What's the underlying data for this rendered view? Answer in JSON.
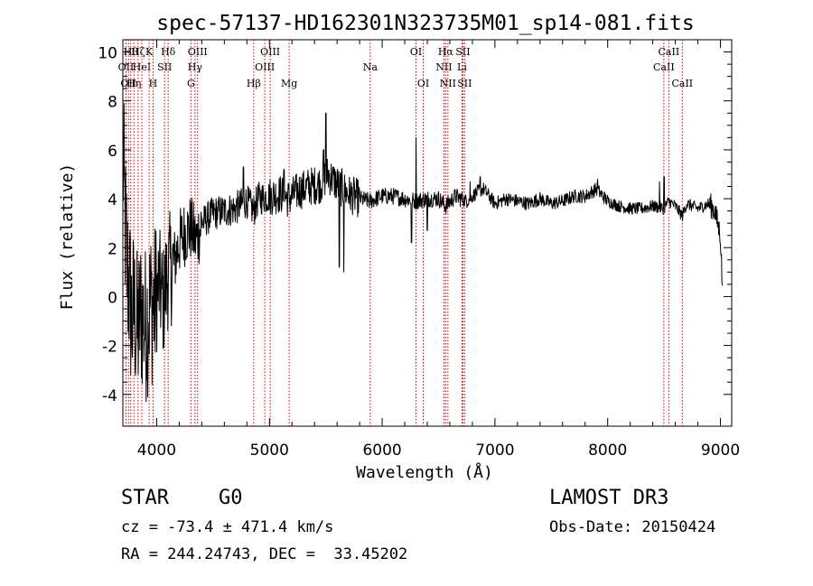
{
  "chart_data": {
    "type": "line",
    "title": "spec-57137-HD162301N323735M01_sp14-081.fits",
    "xlabel": "Wavelength (Å)",
    "ylabel": "Flux (relative)",
    "xlim": [
      3700,
      9100
    ],
    "ylim": [
      -5.3,
      10.5
    ],
    "x_ticks": [
      "4000",
      "5000",
      "6000",
      "7000",
      "8000",
      "9000"
    ],
    "x_tick_values": [
      4000,
      5000,
      6000,
      7000,
      8000,
      9000
    ],
    "y_ticks": [
      "-4",
      "-2",
      "0",
      "2",
      "4",
      "6",
      "8",
      "10"
    ],
    "y_tick_values": [
      -4,
      -2,
      0,
      2,
      4,
      6,
      8,
      10
    ],
    "line_color": "#000000",
    "marker_color": "#cc0000",
    "spectrum_anchors": [
      [
        3700,
        5.8
      ],
      [
        3720,
        3.0
      ],
      [
        3740,
        1.0
      ],
      [
        3760,
        0.2
      ],
      [
        3780,
        -1.0
      ],
      [
        3800,
        -0.5
      ],
      [
        3830,
        -1.5
      ],
      [
        3860,
        -0.6
      ],
      [
        3900,
        -1.2
      ],
      [
        3940,
        -0.3
      ],
      [
        3980,
        -0.4
      ],
      [
        4020,
        0.5
      ],
      [
        4060,
        -0.2
      ],
      [
        4100,
        1.0
      ],
      [
        4150,
        1.3
      ],
      [
        4200,
        2.2
      ],
      [
        4250,
        2.6
      ],
      [
        4300,
        2.8
      ],
      [
        4350,
        2.3
      ],
      [
        4400,
        3.0
      ],
      [
        4450,
        3.2
      ],
      [
        4500,
        3.4
      ],
      [
        4600,
        3.5
      ],
      [
        4700,
        3.6
      ],
      [
        4800,
        3.9
      ],
      [
        4860,
        3.5
      ],
      [
        4900,
        4.0
      ],
      [
        5000,
        4.1
      ],
      [
        5100,
        4.2
      ],
      [
        5170,
        4.0
      ],
      [
        5250,
        4.3
      ],
      [
        5350,
        4.5
      ],
      [
        5450,
        4.6
      ],
      [
        5520,
        5.0
      ],
      [
        5600,
        4.6
      ],
      [
        5700,
        4.2
      ],
      [
        5800,
        4.0
      ],
      [
        5890,
        3.9
      ],
      [
        6000,
        4.1
      ],
      [
        6100,
        4.1
      ],
      [
        6200,
        4.0
      ],
      [
        6300,
        3.9
      ],
      [
        6400,
        4.0
      ],
      [
        6500,
        4.0
      ],
      [
        6563,
        3.7
      ],
      [
        6650,
        4.1
      ],
      [
        6750,
        3.9
      ],
      [
        6850,
        4.3
      ],
      [
        6900,
        4.4
      ],
      [
        7000,
        3.8
      ],
      [
        7100,
        4.0
      ],
      [
        7200,
        3.9
      ],
      [
        7300,
        3.8
      ],
      [
        7400,
        4.0
      ],
      [
        7500,
        3.8
      ],
      [
        7600,
        3.9
      ],
      [
        7700,
        4.1
      ],
      [
        7800,
        4.1
      ],
      [
        7900,
        4.4
      ],
      [
        8000,
        3.9
      ],
      [
        8100,
        3.7
      ],
      [
        8200,
        3.6
      ],
      [
        8300,
        3.6
      ],
      [
        8400,
        3.7
      ],
      [
        8498,
        3.6
      ],
      [
        8542,
        3.9
      ],
      [
        8600,
        3.7
      ],
      [
        8662,
        3.3
      ],
      [
        8700,
        3.8
      ],
      [
        8800,
        3.6
      ],
      [
        8900,
        3.8
      ],
      [
        8950,
        3.5
      ],
      [
        9000,
        2.5
      ],
      [
        9020,
        0.1
      ]
    ],
    "spectrum_features": [
      {
        "x": 5660,
        "y": 1.0
      },
      {
        "x": 5620,
        "y": 1.2
      },
      {
        "x": 5500,
        "y": 7.5
      },
      {
        "x": 5480,
        "y": 6.0
      },
      {
        "x": 6300,
        "y": 6.5
      },
      {
        "x": 6260,
        "y": 2.2
      },
      {
        "x": 6400,
        "y": 2.7
      },
      {
        "x": 5130,
        "y": 5.2
      },
      {
        "x": 4770,
        "y": 5.3
      },
      {
        "x": 6780,
        "y": 4.7
      },
      {
        "x": 6870,
        "y": 4.9
      },
      {
        "x": 7910,
        "y": 4.8
      },
      {
        "x": 8460,
        "y": 4.7
      },
      {
        "x": 8500,
        "y": 4.9
      }
    ],
    "line_markers": [
      {
        "x": 3728,
        "label": "OII",
        "row": 1
      },
      {
        "x": 3750,
        "label": "OII",
        "row": 2
      },
      {
        "x": 3770,
        "label": "Hθ",
        "row": 0
      },
      {
        "x": 3798,
        "label": "Hη",
        "row": 2
      },
      {
        "x": 3835,
        "label": "Hζ",
        "row": 0
      },
      {
        "x": 3868,
        "label": "HeI",
        "row": 1
      },
      {
        "x": 3933,
        "label": "K",
        "row": 0
      },
      {
        "x": 3968,
        "label": "H",
        "row": 2
      },
      {
        "x": 4070,
        "label": "SII",
        "row": 1
      },
      {
        "x": 4102,
        "label": "Hδ",
        "row": 0
      },
      {
        "x": 4304,
        "label": "G",
        "row": 2
      },
      {
        "x": 4340,
        "label": "Hγ",
        "row": 1
      },
      {
        "x": 4363,
        "label": "OIII",
        "row": 0
      },
      {
        "x": 4861,
        "label": "Hβ",
        "row": 2
      },
      {
        "x": 4959,
        "label": "OIII",
        "row": 1
      },
      {
        "x": 5007,
        "label": "OIII",
        "row": 0
      },
      {
        "x": 5175,
        "label": "Mg",
        "row": 2
      },
      {
        "x": 5894,
        "label": "Na",
        "row": 1
      },
      {
        "x": 6300,
        "label": "OI",
        "row": 0
      },
      {
        "x": 6364,
        "label": "OI",
        "row": 2
      },
      {
        "x": 6548,
        "label": "NII",
        "row": 1
      },
      {
        "x": 6563,
        "label": "Hα",
        "row": 0
      },
      {
        "x": 6583,
        "label": "NII",
        "row": 2
      },
      {
        "x": 6708,
        "label": "Li",
        "row": 1
      },
      {
        "x": 6716,
        "label": "SII",
        "row": 0
      },
      {
        "x": 6731,
        "label": "SII",
        "row": 2
      },
      {
        "x": 8498,
        "label": "CaII",
        "row": 1
      },
      {
        "x": 8542,
        "label": "CaII",
        "row": 0
      },
      {
        "x": 8662,
        "label": "CaII",
        "row": 2
      }
    ]
  },
  "info": {
    "class_label": "STAR",
    "subclass_label": "G0",
    "survey": "LAMOST DR3",
    "cz": "cz = -73.4 ± 471.4 km/s",
    "obs_date": "Obs-Date: 20150424",
    "coords": "RA = 244.24743, DEC =  33.45202"
  }
}
